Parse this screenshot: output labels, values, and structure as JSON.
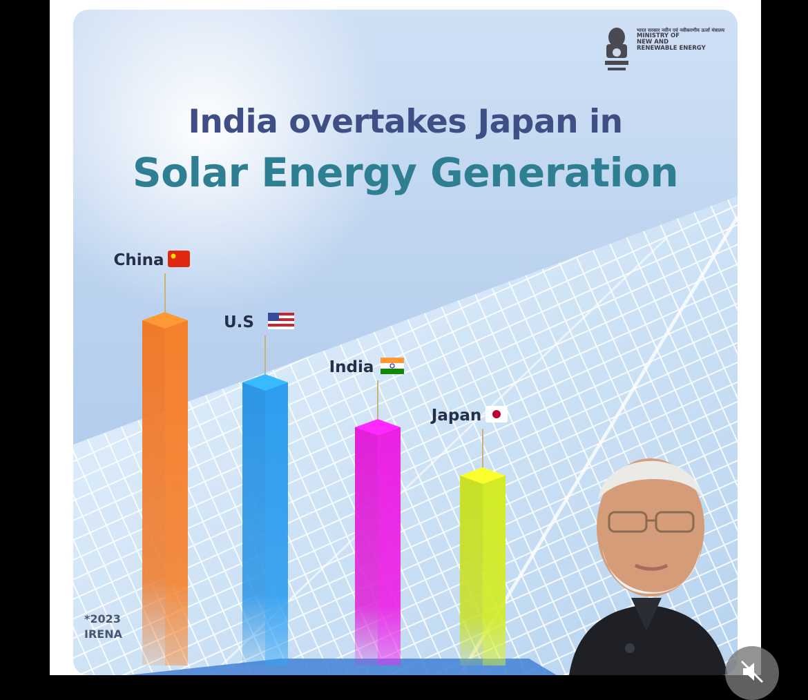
{
  "header": {
    "logo": {
      "name": "ministry-emblem",
      "hindi_text": "भारत सरकार नवीन एवं नवीकरणीय ऊर्जा मंत्रालय",
      "english_line1": "MINISTRY OF",
      "english_line2": "NEW AND",
      "english_line3": "RENEWABLE ENERGY"
    }
  },
  "title": {
    "line1": "India overtakes Japan in",
    "line2": "Solar Energy Generation"
  },
  "source": {
    "year": "*2023",
    "org": "IRENA"
  },
  "colors": {
    "china": "#f07a2a",
    "us": "#2c95e6",
    "india": "#e020d8",
    "japan": "#c8e024",
    "title_line1": "#3f4f86",
    "title_line2": "#2e7f92"
  },
  "chart_data": {
    "type": "bar",
    "title": "India overtakes Japan in Solar Energy Generation",
    "xlabel": "",
    "ylabel": "",
    "categories": [
      "China",
      "U.S",
      "India",
      "Japan"
    ],
    "flags": [
      "china-flag-icon",
      "us-flag-icon",
      "india-flag-icon",
      "japan-flag-icon"
    ],
    "relative_values": [
      100,
      82,
      69,
      55
    ],
    "value_units": "relative bar height (% of tallest, no values printed)",
    "colors": [
      "#f07a2a",
      "#2c95e6",
      "#e020d8",
      "#c8e024"
    ]
  },
  "controls": {
    "mute_icon": "muted-speaker-icon"
  }
}
